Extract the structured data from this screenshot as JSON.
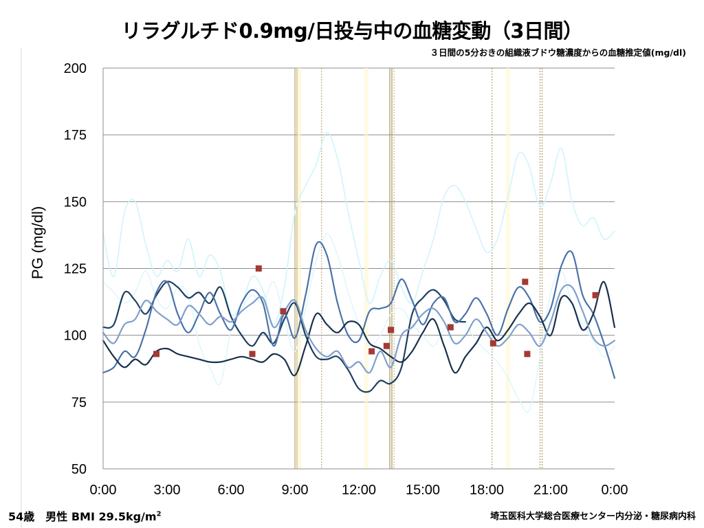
{
  "chart_data": {
    "type": "line",
    "title": "リラグルチド0.9mg/日投与中の血糖変動（3日間）",
    "subtitle": "３日間の5分おきの組織液ブドウ糖濃度からの血糖推定値(mg/dl)",
    "ylabel": "PG (mg/dl)",
    "xlabel": "",
    "ylim": [
      50,
      200
    ],
    "xlim": [
      0,
      24
    ],
    "y_ticks": [
      "50",
      "75",
      "100",
      "125",
      "150",
      "175",
      "200"
    ],
    "x_ticks": [
      "0:00",
      "3:00",
      "6:00",
      "9:00",
      "12:00",
      "15:00",
      "18:00",
      "21:00",
      "0:00"
    ],
    "grid": "horizontal",
    "legend": "none",
    "series": [
      {
        "style": "faint",
        "color": "#cff4fc",
        "x": [
          0.0,
          0.5,
          1.0,
          1.5,
          2.0,
          2.5,
          3.0,
          3.5,
          4.0,
          4.5,
          5.0,
          5.5,
          6.0,
          6.5,
          7.0,
          7.5,
          8.0,
          8.5,
          9.0,
          9.5,
          10.0,
          10.5,
          11.0,
          11.5,
          12.0,
          12.5,
          13.0,
          13.5,
          14.0,
          14.5,
          15.0,
          15.5,
          16.0,
          16.5,
          17.0,
          17.5,
          18.0,
          18.5,
          19.0,
          19.5,
          20.0,
          20.5,
          21.0,
          21.5,
          22.0,
          22.5,
          23.0,
          23.5,
          24.0
        ],
        "y": [
          138,
          122,
          146,
          150,
          134,
          122,
          128,
          124,
          136,
          122,
          130,
          124,
          108,
          112,
          122,
          117,
          104,
          118,
          146,
          156,
          164,
          176,
          166,
          146,
          128,
          112,
          122,
          128,
          118,
          112,
          124,
          136,
          152,
          156,
          150,
          140,
          131,
          136,
          152,
          168,
          163,
          148,
          157,
          170,
          150,
          141,
          144,
          136,
          139
        ]
      },
      {
        "style": "faint",
        "color": "#dff7fb",
        "x": [
          0.0,
          0.5,
          1.0,
          1.5,
          2.0,
          2.5,
          3.0,
          3.5,
          4.0,
          4.5,
          5.0,
          5.5,
          6.0,
          6.5,
          7.0,
          7.5,
          8.0,
          8.5,
          9.0,
          9.5,
          10.0,
          10.5,
          11.0,
          11.5,
          12.0,
          12.5,
          13.0,
          13.5,
          14.0,
          14.5,
          15.0,
          15.5,
          16.0,
          16.5,
          17.0,
          17.5,
          18.0,
          18.5,
          19.0,
          19.5,
          20.0,
          20.5,
          21.0,
          21.5,
          22.0,
          22.5,
          23.0,
          23.5,
          24.0
        ],
        "y": [
          120,
          116,
          112,
          116,
          124,
          114,
          110,
          118,
          115,
          97,
          88,
          82,
          102,
          110,
          115,
          112,
          120,
          106,
          94,
          110,
          128,
          138,
          130,
          116,
          104,
          96,
          100,
          108,
          110,
          104,
          100,
          96,
          102,
          106,
          104,
          98,
          94,
          90,
          84,
          76,
          72,
          92,
          116,
          124,
          112,
          104,
          98,
          92,
          96
        ]
      },
      {
        "style": "series",
        "color": "#1f3f60",
        "x": [
          0.0,
          0.5,
          1.0,
          1.5,
          2.0,
          2.5,
          3.0,
          3.5,
          4.0,
          4.5,
          5.0,
          5.5,
          6.0,
          6.5,
          7.0,
          7.5,
          8.0,
          8.5,
          9.0,
          9.5,
          10.0,
          10.5,
          11.0,
          11.5,
          12.0,
          12.5,
          13.0,
          13.5,
          14.0,
          14.5,
          15.0,
          15.5,
          16.0,
          16.5,
          17.0
        ],
        "y": [
          103,
          104,
          116,
          113,
          108,
          115,
          120,
          118,
          114,
          116,
          112,
          118,
          107,
          100,
          96,
          101,
          97,
          106,
          112,
          100,
          92,
          91,
          92,
          87,
          80,
          79,
          83,
          82,
          88,
          108,
          114,
          117,
          113,
          106,
          105
        ]
      },
      {
        "style": "series",
        "color": "#4a72a8",
        "x": [
          0.0,
          0.5,
          1.0,
          1.5,
          2.0,
          2.5,
          3.0,
          3.5,
          4.0,
          4.5,
          5.0,
          5.5,
          6.0,
          6.5,
          7.0,
          7.5,
          8.0,
          8.5,
          9.0,
          9.5,
          10.0,
          10.5,
          11.0,
          11.5,
          12.0,
          12.5,
          13.0,
          13.5,
          14.0,
          14.5,
          15.0,
          15.5,
          16.0,
          16.5,
          17.0,
          17.5,
          18.0,
          18.5,
          19.0,
          19.5,
          20.0,
          20.5,
          21.0,
          21.5,
          22.0,
          22.5,
          23.0,
          23.5,
          24.0
        ],
        "y": [
          86,
          88,
          94,
          92,
          102,
          116,
          120,
          108,
          101,
          108,
          116,
          108,
          102,
          112,
          117,
          112,
          96,
          108,
          99,
          115,
          134,
          130,
          112,
          100,
          98,
          109,
          110,
          112,
          121,
          113,
          104,
          112,
          114,
          105,
          108,
          114,
          108,
          100,
          110,
          118,
          114,
          105,
          110,
          126,
          131,
          115,
          108,
          97,
          84
        ]
      },
      {
        "style": "series",
        "color": "#17304d",
        "x": [
          0.0,
          0.5,
          1.0,
          1.5,
          2.0,
          2.5,
          3.0,
          3.5,
          4.0,
          4.5,
          5.0,
          5.5,
          6.0,
          6.5,
          7.0,
          7.5,
          8.0,
          8.5,
          9.0,
          9.5,
          10.0,
          10.5,
          11.0,
          11.5,
          12.0,
          12.5,
          13.0,
          13.5,
          14.0,
          14.5,
          15.0,
          15.5,
          16.0,
          16.5,
          17.0,
          17.5,
          18.0,
          18.5,
          19.0,
          19.5,
          20.0,
          20.5,
          21.0,
          21.5,
          22.0,
          22.5,
          23.0,
          23.5,
          24.0
        ],
        "y": [
          98,
          92,
          88,
          91,
          89,
          94,
          95,
          93,
          92,
          91,
          90,
          90,
          91,
          92,
          91,
          90,
          93,
          91,
          85,
          96,
          108,
          104,
          101,
          105,
          104,
          97,
          95,
          92,
          90,
          94,
          101,
          106,
          96,
          86,
          92,
          97,
          103,
          98,
          102,
          108,
          112,
          107,
          100,
          114,
          112,
          102,
          108,
          120,
          103
        ]
      },
      {
        "style": "series",
        "color": "#7f9fcc",
        "x": [
          0.0,
          0.5,
          1.0,
          1.5,
          2.0,
          2.5,
          3.0,
          3.5,
          4.0,
          4.5,
          5.0,
          5.5,
          6.0,
          6.5,
          7.0,
          7.5,
          8.0,
          8.5,
          9.0,
          9.5,
          10.0,
          10.5,
          11.0,
          11.5,
          12.0,
          12.5,
          13.0,
          13.5,
          14.0,
          14.5,
          15.0,
          15.5,
          16.0,
          16.5,
          17.0,
          17.5,
          18.0,
          18.5,
          19.0,
          19.5,
          20.0,
          20.5,
          21.0,
          21.5,
          22.0,
          22.5,
          23.0,
          23.5,
          24.0
        ],
        "y": [
          101,
          97,
          104,
          106,
          113,
          109,
          106,
          104,
          111,
          108,
          104,
          107,
          105,
          109,
          112,
          114,
          103,
          109,
          113,
          102,
          95,
          92,
          94,
          88,
          90,
          86,
          94,
          88,
          100,
          103,
          108,
          110,
          105,
          97,
          100,
          106,
          101,
          96,
          99,
          104,
          101,
          96,
          105,
          117,
          118,
          109,
          99,
          96,
          98
        ]
      }
    ],
    "markers": {
      "color": "#a33a34",
      "points": [
        [
          2.5,
          93
        ],
        [
          7.0,
          93
        ],
        [
          7.3,
          125
        ],
        [
          8.45,
          109
        ],
        [
          12.6,
          94
        ],
        [
          13.3,
          96
        ],
        [
          13.5,
          102
        ],
        [
          16.3,
          103
        ],
        [
          18.3,
          97
        ],
        [
          19.8,
          120
        ],
        [
          19.9,
          93
        ],
        [
          23.1,
          115
        ]
      ]
    },
    "event_lines": [
      {
        "x": 9.05,
        "color": "#b6a064",
        "style": "double-solid"
      },
      {
        "x": 9.2,
        "color": "#fff3c4",
        "style": "band"
      },
      {
        "x": 10.25,
        "color": "#c0aa73",
        "style": "dotted"
      },
      {
        "x": 12.35,
        "color": "#fff6cf",
        "style": "band"
      },
      {
        "x": 13.5,
        "color": "#a8945c",
        "style": "double-solid"
      },
      {
        "x": 13.65,
        "color": "#c8b47e",
        "style": "dotted"
      },
      {
        "x": 18.25,
        "color": "#b29d69",
        "style": "dotted"
      },
      {
        "x": 19.0,
        "color": "#fff6cf",
        "style": "band"
      },
      {
        "x": 20.55,
        "color": "#b29d69",
        "style": "double-dotted"
      }
    ]
  },
  "footer": {
    "patient": "54歳　男性 BMI 29.5kg/m",
    "patient_sup": "2",
    "institution": "埼玉医科大学総合医療センター内分泌・糖尿病内科"
  }
}
